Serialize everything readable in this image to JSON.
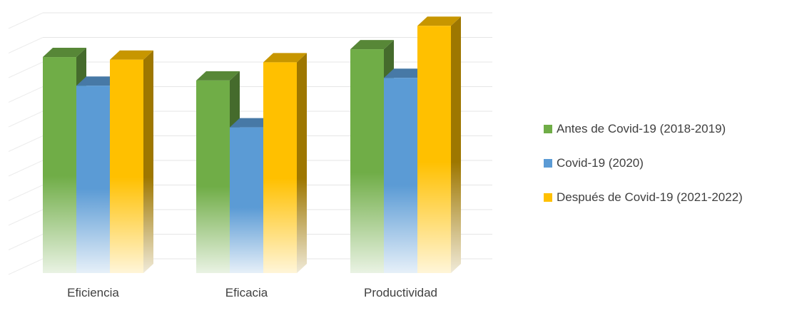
{
  "chart_data": {
    "type": "bar",
    "title": "",
    "xlabel": "",
    "ylabel": "",
    "categories": [
      "Eficiencia",
      "Eficacia",
      "Productividad"
    ],
    "series": [
      {
        "name": "Antes de Covid-19 (2018-2019)",
        "color": "#70AD47",
        "values": [
          8.3,
          7.4,
          8.6
        ]
      },
      {
        "name": "Covid-19 (2020)",
        "color": "#5B9BD5",
        "values": [
          7.2,
          5.6,
          7.5
        ]
      },
      {
        "name": "Después de Covid-19 (2021-2022)",
        "color": "#FFC000",
        "values": [
          8.2,
          8.1,
          9.5
        ]
      }
    ],
    "ylim": [
      0,
      10
    ],
    "grid": true,
    "three_d": true,
    "legend_position": "right"
  }
}
